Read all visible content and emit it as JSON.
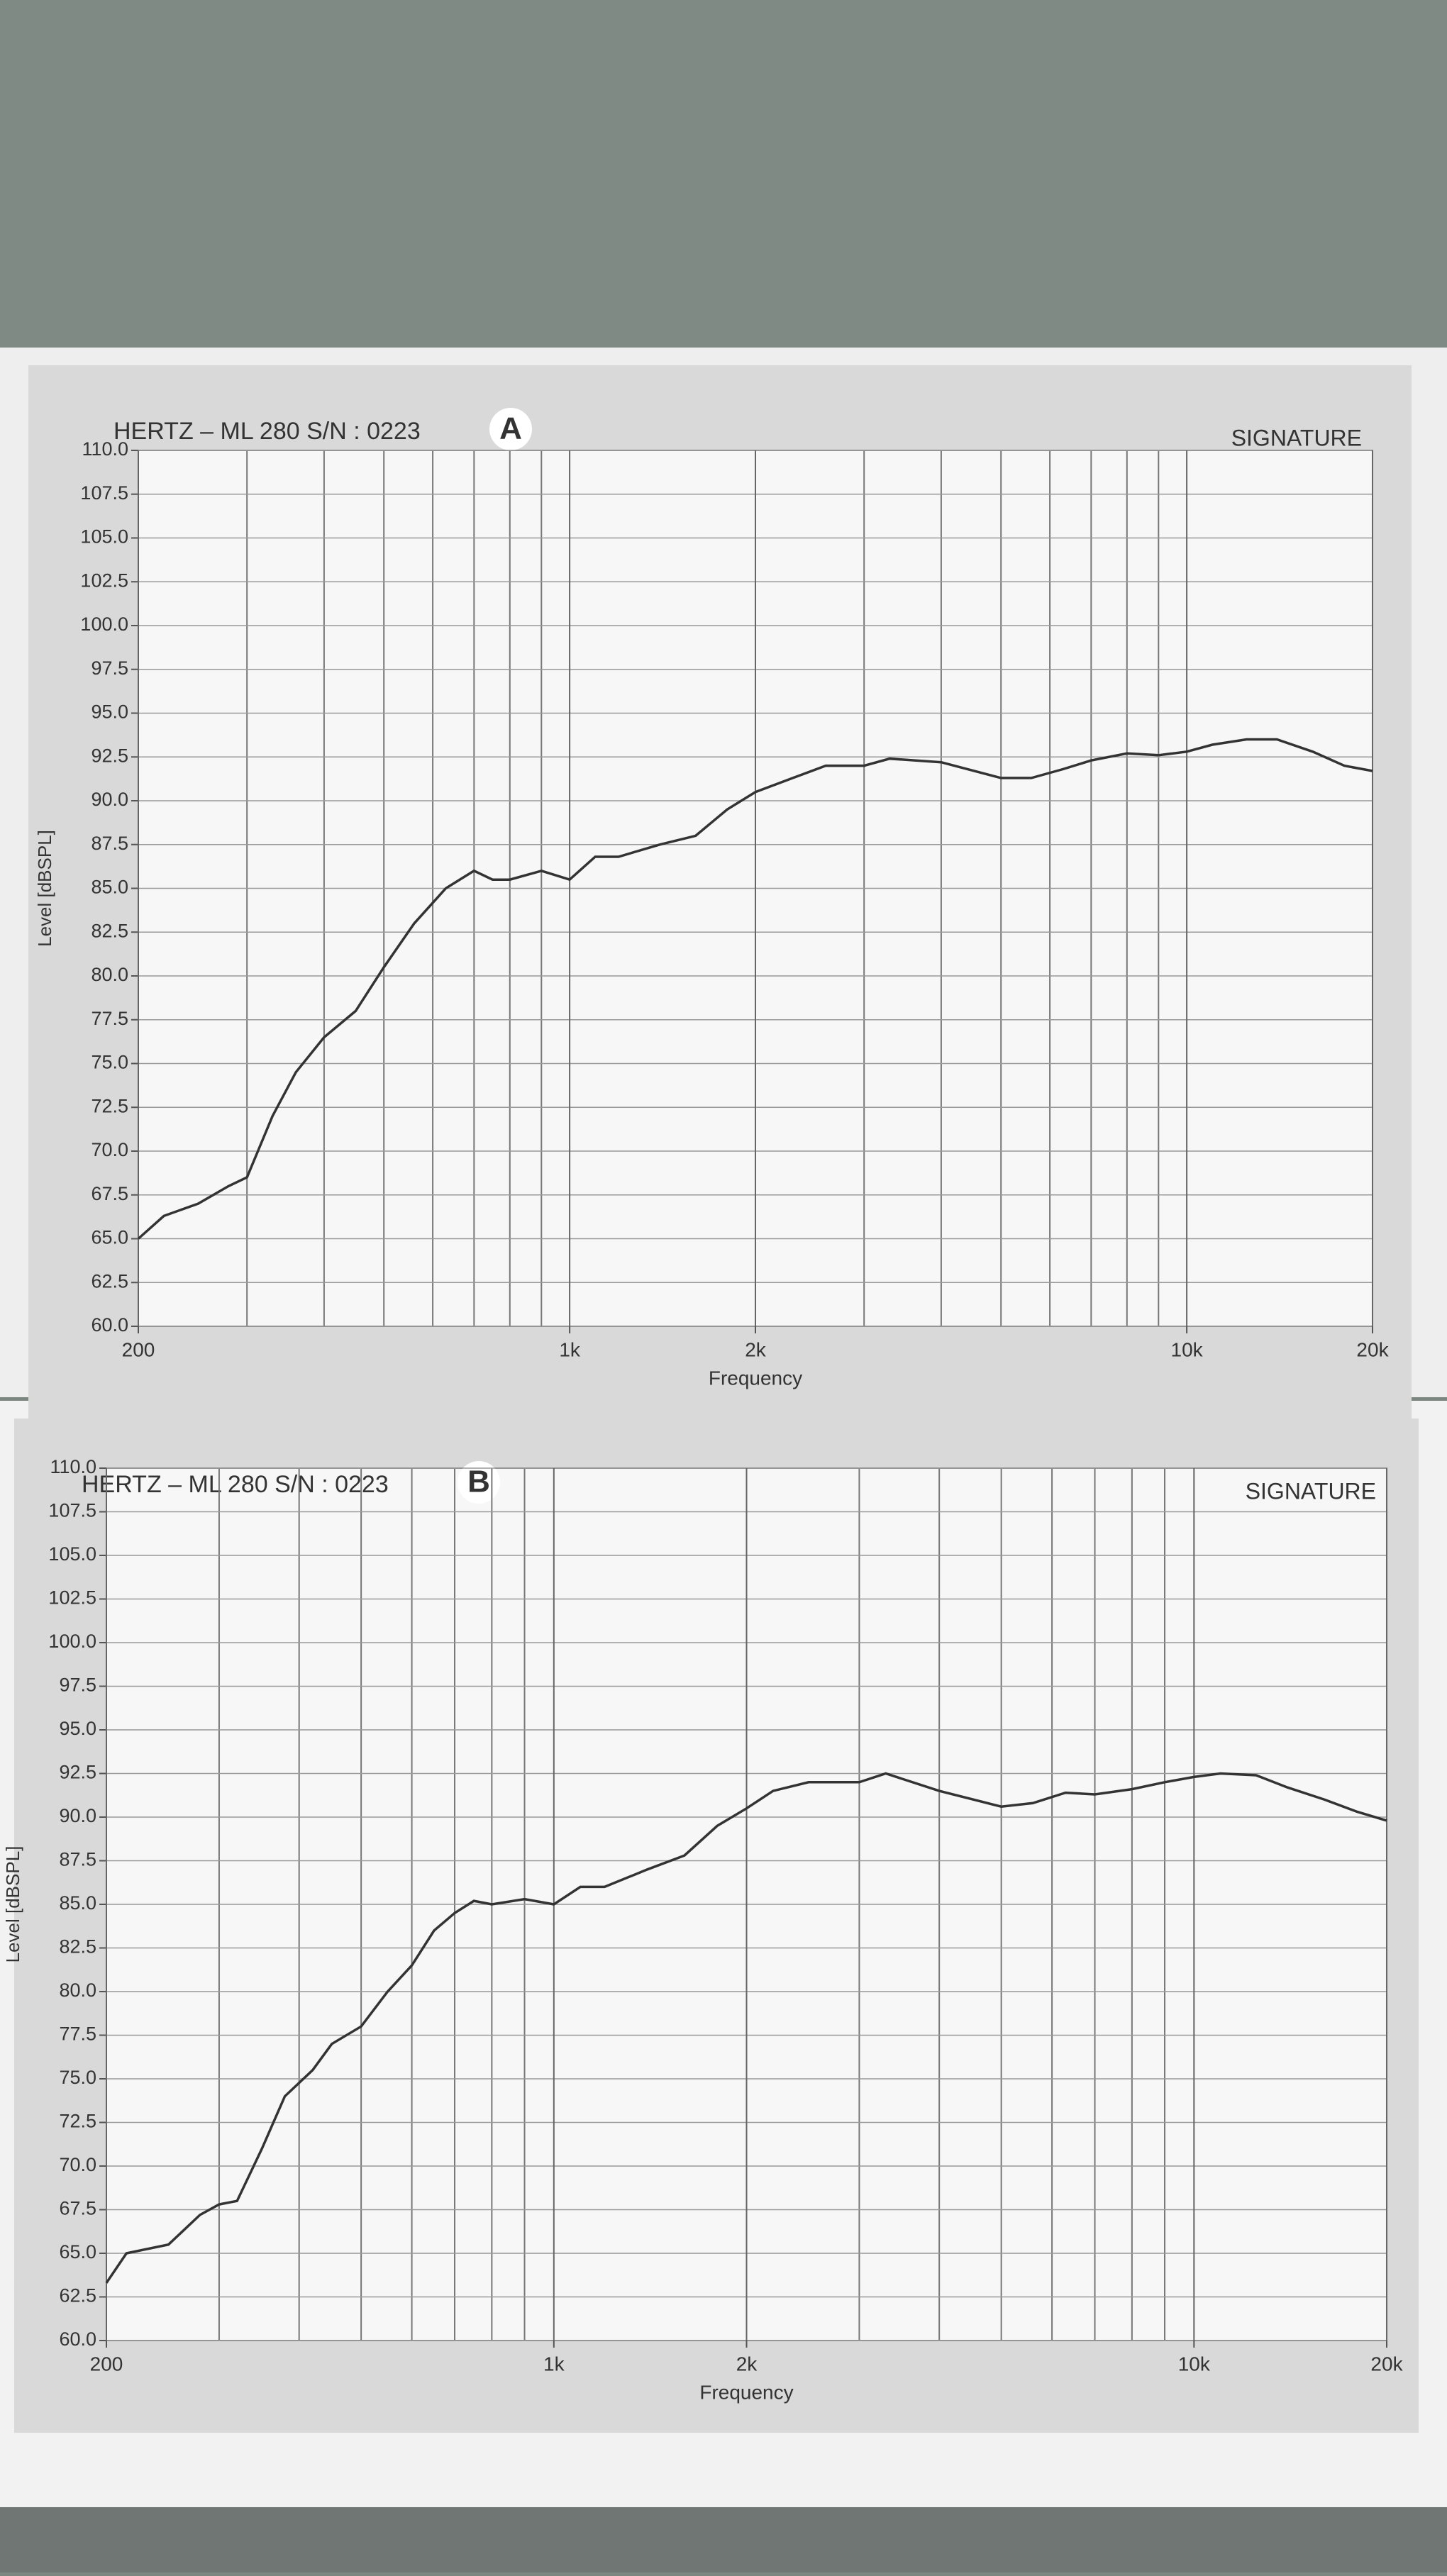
{
  "chart_data": [
    {
      "type": "line",
      "title": "HERTZ – ML 280 S/N :  0223",
      "badge": "A",
      "subtitle": "SIGNATURE",
      "x_label": "Frequency",
      "y_label": "Level [dBSPL]",
      "log_x": true,
      "grid": true,
      "color": "#333333",
      "xlim": [
        200,
        20000
      ],
      "xticks": [
        200,
        {
          "value": 1000,
          "label": "1k"
        },
        {
          "value": 2000,
          "label": "2k"
        },
        {
          "value": 10000,
          "label": "10k"
        },
        {
          "value": 20000,
          "label": "20k"
        }
      ],
      "ylim": [
        60,
        110
      ],
      "yticks": [
        {
          "value": 60,
          "label": "60.0"
        },
        62.5,
        {
          "value": 65,
          "label": "65.0"
        },
        67.5,
        {
          "value": 70,
          "label": "70.0"
        },
        72.5,
        {
          "value": 75,
          "label": "75.0"
        },
        77.5,
        {
          "value": 80,
          "label": "80.0"
        },
        82.5,
        {
          "value": 85,
          "label": "85.0"
        },
        87.5,
        {
          "value": 90,
          "label": "90.0"
        },
        92.5,
        {
          "value": 95,
          "label": "95.0"
        },
        97.5,
        {
          "value": 100,
          "label": "100.0"
        },
        102.5,
        {
          "value": 105,
          "label": "105.0"
        },
        107.5,
        {
          "value": 110,
          "label": "110.0"
        }
      ],
      "x": [
        200,
        220,
        250,
        280,
        300,
        330,
        360,
        400,
        450,
        500,
        560,
        630,
        700,
        750,
        800,
        900,
        1000,
        1100,
        1200,
        1400,
        1600,
        1800,
        2000,
        2300,
        2600,
        3000,
        3300,
        4000,
        5000,
        5600,
        6300,
        7000,
        8000,
        9000,
        10000,
        11000,
        12500,
        14000,
        16000,
        18000,
        20000
      ],
      "values": [
        65.0,
        66.3,
        67.0,
        68.0,
        68.5,
        72,
        74.5,
        76.5,
        78,
        80.5,
        83,
        85,
        86,
        85.5,
        85.5,
        86,
        85.5,
        86.8,
        86.8,
        87.5,
        88.0,
        89.5,
        90.5,
        91.3,
        92.0,
        92.0,
        92.4,
        92.2,
        91.3,
        91.3,
        91.8,
        92.3,
        92.7,
        92.6,
        92.8,
        93.2,
        93.5,
        93.5,
        92.8,
        92.0,
        91.7
      ]
    },
    {
      "type": "line",
      "title": "HERTZ – ML 280 S/N :  0223",
      "badge": "B",
      "subtitle": "SIGNATURE",
      "x_label": "Frequency",
      "y_label": "Level [dBSPL]",
      "log_x": true,
      "grid": true,
      "color": "#333333",
      "xlim": [
        200,
        20000
      ],
      "xticks": [
        200,
        {
          "value": 1000,
          "label": "1k"
        },
        {
          "value": 2000,
          "label": "2k"
        },
        {
          "value": 10000,
          "label": "10k"
        },
        {
          "value": 20000,
          "label": "20k"
        }
      ],
      "ylim": [
        60,
        110
      ],
      "yticks": [
        {
          "value": 60,
          "label": "60.0"
        },
        62.5,
        {
          "value": 65,
          "label": "65.0"
        },
        67.5,
        {
          "value": 70,
          "label": "70.0"
        },
        72.5,
        {
          "value": 75,
          "label": "75.0"
        },
        77.5,
        {
          "value": 80,
          "label": "80.0"
        },
        82.5,
        {
          "value": 85,
          "label": "85.0"
        },
        87.5,
        {
          "value": 90,
          "label": "90.0"
        },
        92.5,
        {
          "value": 95,
          "label": "95.0"
        },
        97.5,
        {
          "value": 100,
          "label": "100.0"
        },
        102.5,
        {
          "value": 105,
          "label": "105.0"
        },
        107.5,
        {
          "value": 110,
          "label": "110.0"
        }
      ],
      "x": [
        200,
        215,
        250,
        280,
        300,
        320,
        350,
        380,
        420,
        450,
        500,
        550,
        600,
        650,
        700,
        750,
        800,
        900,
        1000,
        1100,
        1200,
        1400,
        1600,
        1800,
        2000,
        2200,
        2500,
        3000,
        3300,
        4000,
        5000,
        5600,
        6300,
        7000,
        8000,
        9000,
        10000,
        11000,
        12500,
        14000,
        16000,
        18000,
        20000
      ],
      "values": [
        63.3,
        65.0,
        65.5,
        67.2,
        67.8,
        68.0,
        71,
        74,
        75.5,
        77,
        78,
        80,
        81.5,
        83.5,
        84.5,
        85.2,
        85.0,
        85.3,
        85.0,
        86.0,
        86.0,
        87.0,
        87.8,
        89.5,
        90.5,
        91.5,
        92.0,
        92.0,
        92.5,
        91.5,
        90.6,
        90.8,
        91.4,
        91.3,
        91.6,
        92.0,
        92.3,
        92.5,
        92.4,
        91.7,
        91.0,
        90.3,
        89.8
      ]
    }
  ]
}
